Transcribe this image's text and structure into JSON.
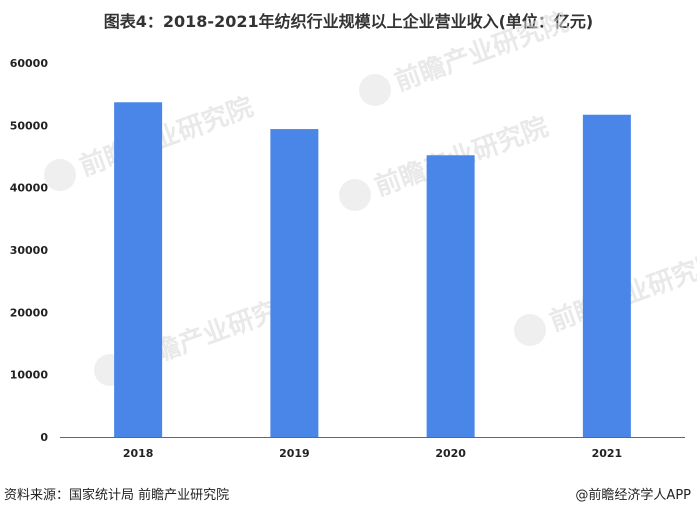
{
  "title": "图表4：2018-2021年纺织行业规模以上企业营业收入(单位：亿元)",
  "watermark": "前瞻产业研究院",
  "footer": {
    "source": "资料来源：国家统计局 前瞻产业研究院",
    "brand": "@前瞻经济学人APP"
  },
  "colors": {
    "bar": "#4a86e8",
    "axis": "#666666",
    "text": "#222222"
  },
  "chart_data": {
    "type": "bar",
    "title": "图表4：2018-2021年纺织行业规模以上企业营业收入(单位：亿元)",
    "categories": [
      "2018",
      "2019",
      "2020",
      "2021"
    ],
    "values": [
      53700,
      49400,
      45200,
      51700
    ],
    "ylim": [
      0,
      60000
    ],
    "yticks": [
      0,
      10000,
      20000,
      30000,
      40000,
      50000,
      60000
    ],
    "xlabel": "",
    "ylabel": "",
    "grid": false,
    "legend": "none"
  }
}
